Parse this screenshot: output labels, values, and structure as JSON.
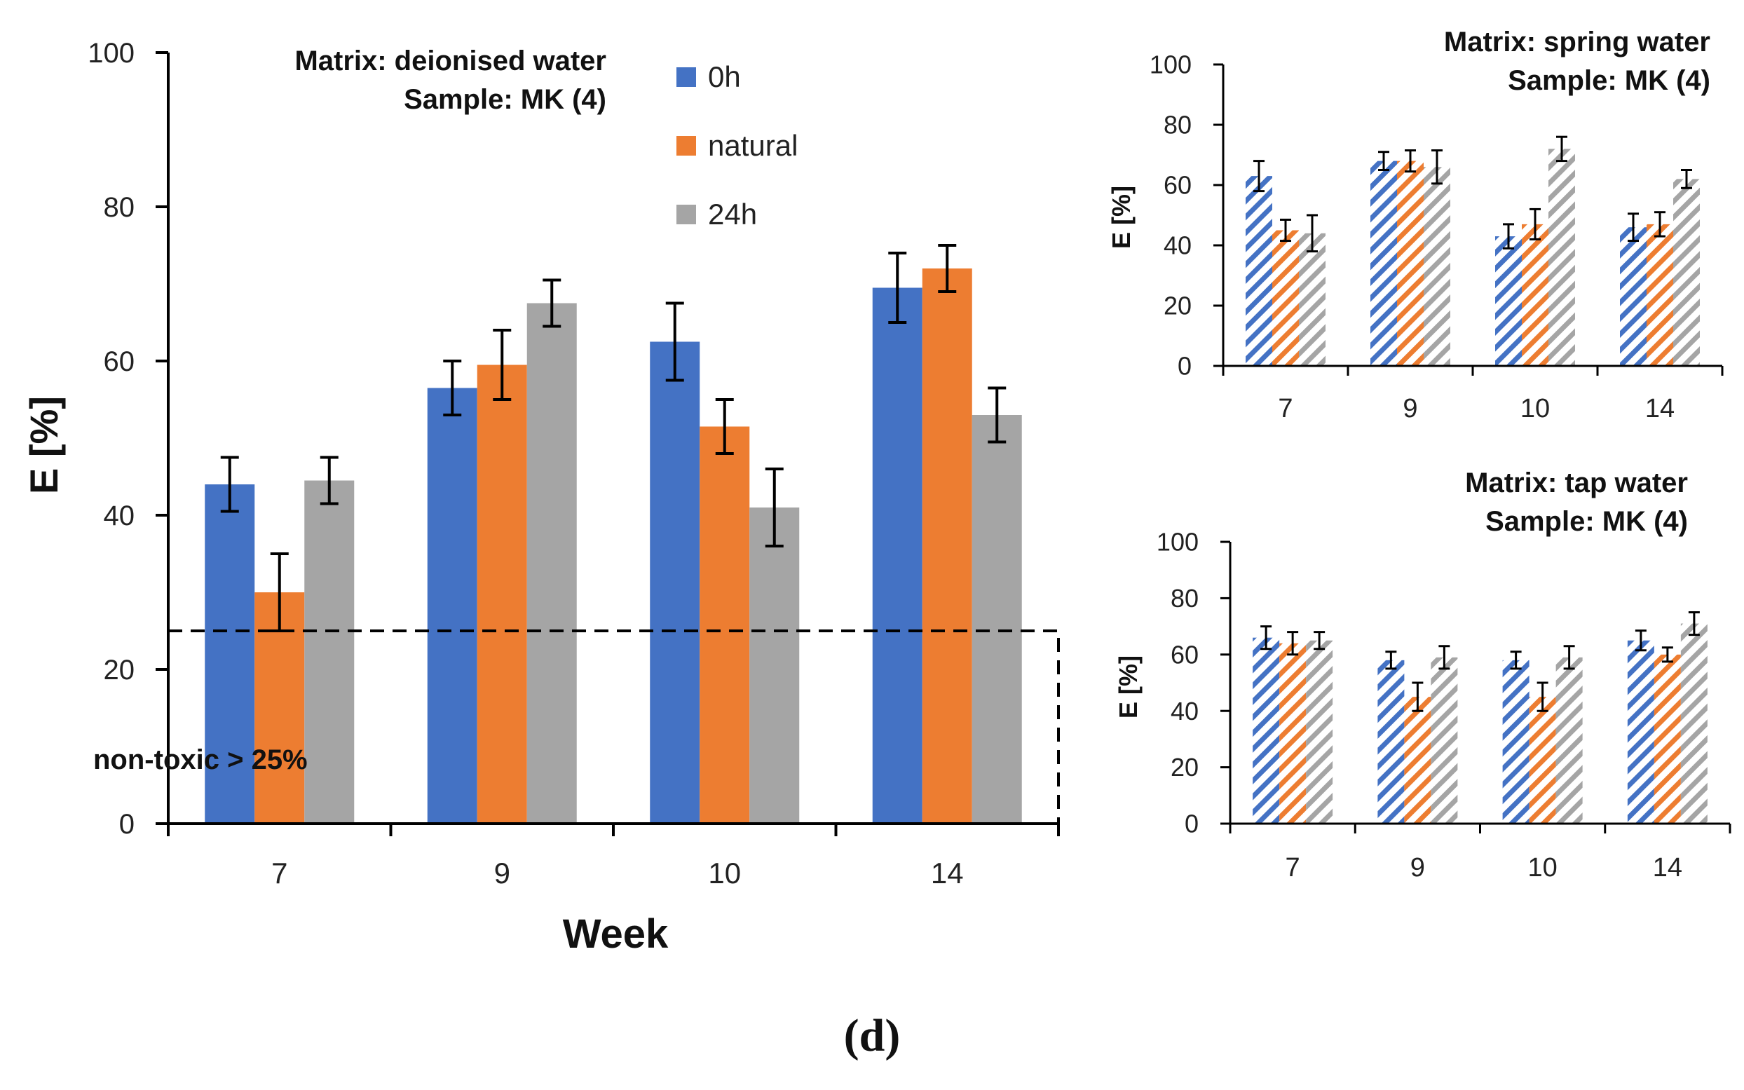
{
  "panel_label": "(d)",
  "colors": {
    "0h": "#4472C4",
    "natural": "#ED7D31",
    "24h": "#A5A5A5",
    "axis": "#000000"
  },
  "chart_data": [
    {
      "id": "main",
      "type": "bar",
      "pattern": "solid",
      "annotation_lines": [
        "Matrix: deionised water",
        "Sample: MK (4)"
      ],
      "threshold_label": "non-toxic > 25%",
      "threshold_value": 25,
      "xlabel": "Week",
      "ylabel": "E [%]",
      "ylim": [
        0,
        100
      ],
      "yticks": [
        0,
        20,
        40,
        60,
        80,
        100
      ],
      "categories": [
        "7",
        "9",
        "10",
        "14"
      ],
      "legend": {
        "position": "top-center",
        "entries": [
          "0h",
          "natural",
          "24h"
        ]
      },
      "series": [
        {
          "name": "0h",
          "values": [
            44,
            56.5,
            62.5,
            69.5
          ],
          "errors": [
            3.5,
            3.5,
            5,
            4.5
          ]
        },
        {
          "name": "natural",
          "values": [
            30,
            59.5,
            51.5,
            72
          ],
          "errors": [
            5,
            4.5,
            3.5,
            3
          ]
        },
        {
          "name": "24h",
          "values": [
            44.5,
            67.5,
            41,
            53
          ],
          "errors": [
            3,
            3,
            5,
            3.5
          ]
        }
      ]
    },
    {
      "id": "spring",
      "type": "bar",
      "pattern": "hatched",
      "annotation_lines": [
        "Matrix: spring water",
        "Sample: MK (4)"
      ],
      "xlabel": "",
      "ylabel": "E [%]",
      "ylim": [
        0,
        100
      ],
      "yticks": [
        0,
        20,
        40,
        60,
        80,
        100
      ],
      "categories": [
        "7",
        "9",
        "10",
        "14"
      ],
      "series": [
        {
          "name": "0h",
          "values": [
            63,
            68,
            43,
            46
          ],
          "errors": [
            5,
            3,
            4,
            4.5
          ]
        },
        {
          "name": "natural",
          "values": [
            45,
            68,
            47,
            47
          ],
          "errors": [
            3.5,
            3.5,
            5,
            4
          ]
        },
        {
          "name": "24h",
          "values": [
            44,
            66,
            72,
            62
          ],
          "errors": [
            6,
            5.5,
            4,
            3
          ]
        }
      ]
    },
    {
      "id": "tap",
      "type": "bar",
      "pattern": "hatched",
      "annotation_lines": [
        "Matrix: tap water",
        "Sample: MK (4)"
      ],
      "xlabel": "",
      "ylabel": "E [%]",
      "ylim": [
        0,
        100
      ],
      "yticks": [
        0,
        20,
        40,
        60,
        80,
        100
      ],
      "categories": [
        "7",
        "9",
        "10",
        "14"
      ],
      "series": [
        {
          "name": "0h",
          "values": [
            66,
            58,
            58,
            65
          ],
          "errors": [
            4,
            3,
            3,
            3.5
          ]
        },
        {
          "name": "natural",
          "values": [
            64,
            45,
            45,
            60
          ],
          "errors": [
            4,
            5,
            5,
            2.5
          ]
        },
        {
          "name": "24h",
          "values": [
            65,
            59,
            59,
            71
          ],
          "errors": [
            3,
            4,
            4,
            4
          ]
        }
      ]
    }
  ]
}
